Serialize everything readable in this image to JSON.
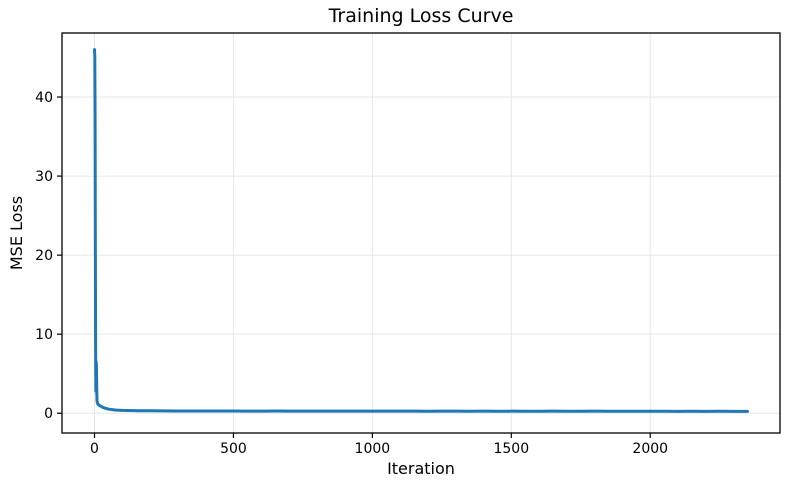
{
  "chart_data": {
    "type": "line",
    "title": "Training Loss Curve",
    "xlabel": "Iteration",
    "ylabel": "MSE Loss",
    "x": [
      0,
      1,
      2,
      3,
      4,
      5,
      6,
      7,
      8,
      9,
      10,
      12,
      15,
      18,
      22,
      26,
      30,
      35,
      40,
      45,
      50,
      60,
      70,
      80,
      90,
      100,
      120,
      140,
      160,
      180,
      200,
      250,
      300,
      350,
      400,
      450,
      500,
      550,
      600,
      650,
      700,
      750,
      800,
      850,
      900,
      950,
      1000,
      1050,
      1100,
      1150,
      1200,
      1250,
      1300,
      1350,
      1400,
      1450,
      1500,
      1550,
      1600,
      1650,
      1700,
      1750,
      1800,
      1850,
      1900,
      1950,
      2000,
      2050,
      2100,
      2150,
      2200,
      2250,
      2300,
      2350
    ],
    "y": [
      46.0,
      45.2,
      38.0,
      22.0,
      8.0,
      2.8,
      6.5,
      6.0,
      3.2,
      1.6,
      1.35,
      1.2,
      1.05,
      0.98,
      0.9,
      0.82,
      0.75,
      0.68,
      0.62,
      0.57,
      0.53,
      0.47,
      0.43,
      0.4,
      0.38,
      0.36,
      0.34,
      0.33,
      0.32,
      0.31,
      0.31,
      0.3,
      0.29,
      0.29,
      0.28,
      0.28,
      0.28,
      0.27,
      0.27,
      0.28,
      0.27,
      0.26,
      0.27,
      0.26,
      0.27,
      0.26,
      0.26,
      0.27,
      0.26,
      0.26,
      0.25,
      0.26,
      0.26,
      0.25,
      0.26,
      0.25,
      0.26,
      0.25,
      0.25,
      0.26,
      0.25,
      0.25,
      0.26,
      0.25,
      0.25,
      0.25,
      0.25,
      0.25,
      0.24,
      0.25,
      0.24,
      0.25,
      0.24,
      0.24
    ],
    "xticks": [
      0,
      500,
      1000,
      1500,
      2000
    ],
    "yticks": [
      0,
      10,
      20,
      30,
      40
    ],
    "xlim": [
      -117,
      2467
    ],
    "ylim": [
      -2.5,
      48.1
    ],
    "grid": true,
    "legend_position": "none",
    "line_color": "#1f77b4",
    "grid_color": "#e6e6e6",
    "axis_color": "#000000",
    "text_color": "#000000"
  }
}
